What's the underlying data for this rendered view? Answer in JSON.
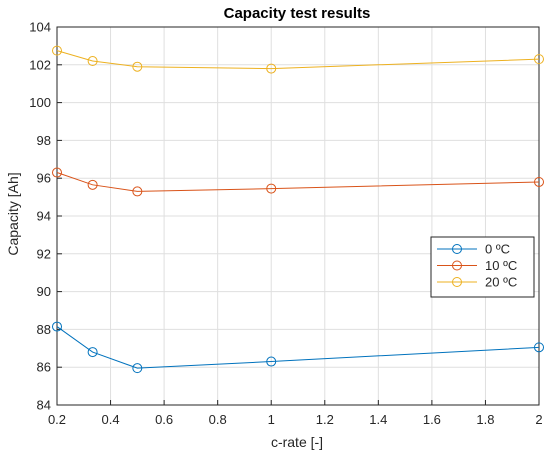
{
  "chart_data": {
    "type": "line",
    "title": "Capacity test results",
    "xlabel": "c-rate [-]",
    "ylabel": "Capacity [Ah]",
    "xlim": [
      0.2,
      2
    ],
    "ylim": [
      84,
      104
    ],
    "xticks": [
      0.2,
      0.4,
      0.6,
      0.8,
      1,
      1.2,
      1.4,
      1.6,
      1.8,
      2
    ],
    "yticks": [
      84,
      86,
      88,
      90,
      92,
      94,
      96,
      98,
      100,
      102,
      104
    ],
    "x": [
      0.2,
      0.333,
      0.5,
      1,
      2
    ],
    "grid": true,
    "legend_position": "right",
    "series": [
      {
        "name": "0 ºC",
        "color": "#0072BD",
        "values": [
          88.15,
          86.8,
          85.95,
          86.3,
          87.05
        ]
      },
      {
        "name": "10 ºC",
        "color": "#D95319",
        "values": [
          96.3,
          95.65,
          95.3,
          95.45,
          95.8
        ]
      },
      {
        "name": "20 ºC",
        "color": "#EDB120",
        "values": [
          102.75,
          102.2,
          101.9,
          101.8,
          102.3
        ]
      }
    ]
  }
}
